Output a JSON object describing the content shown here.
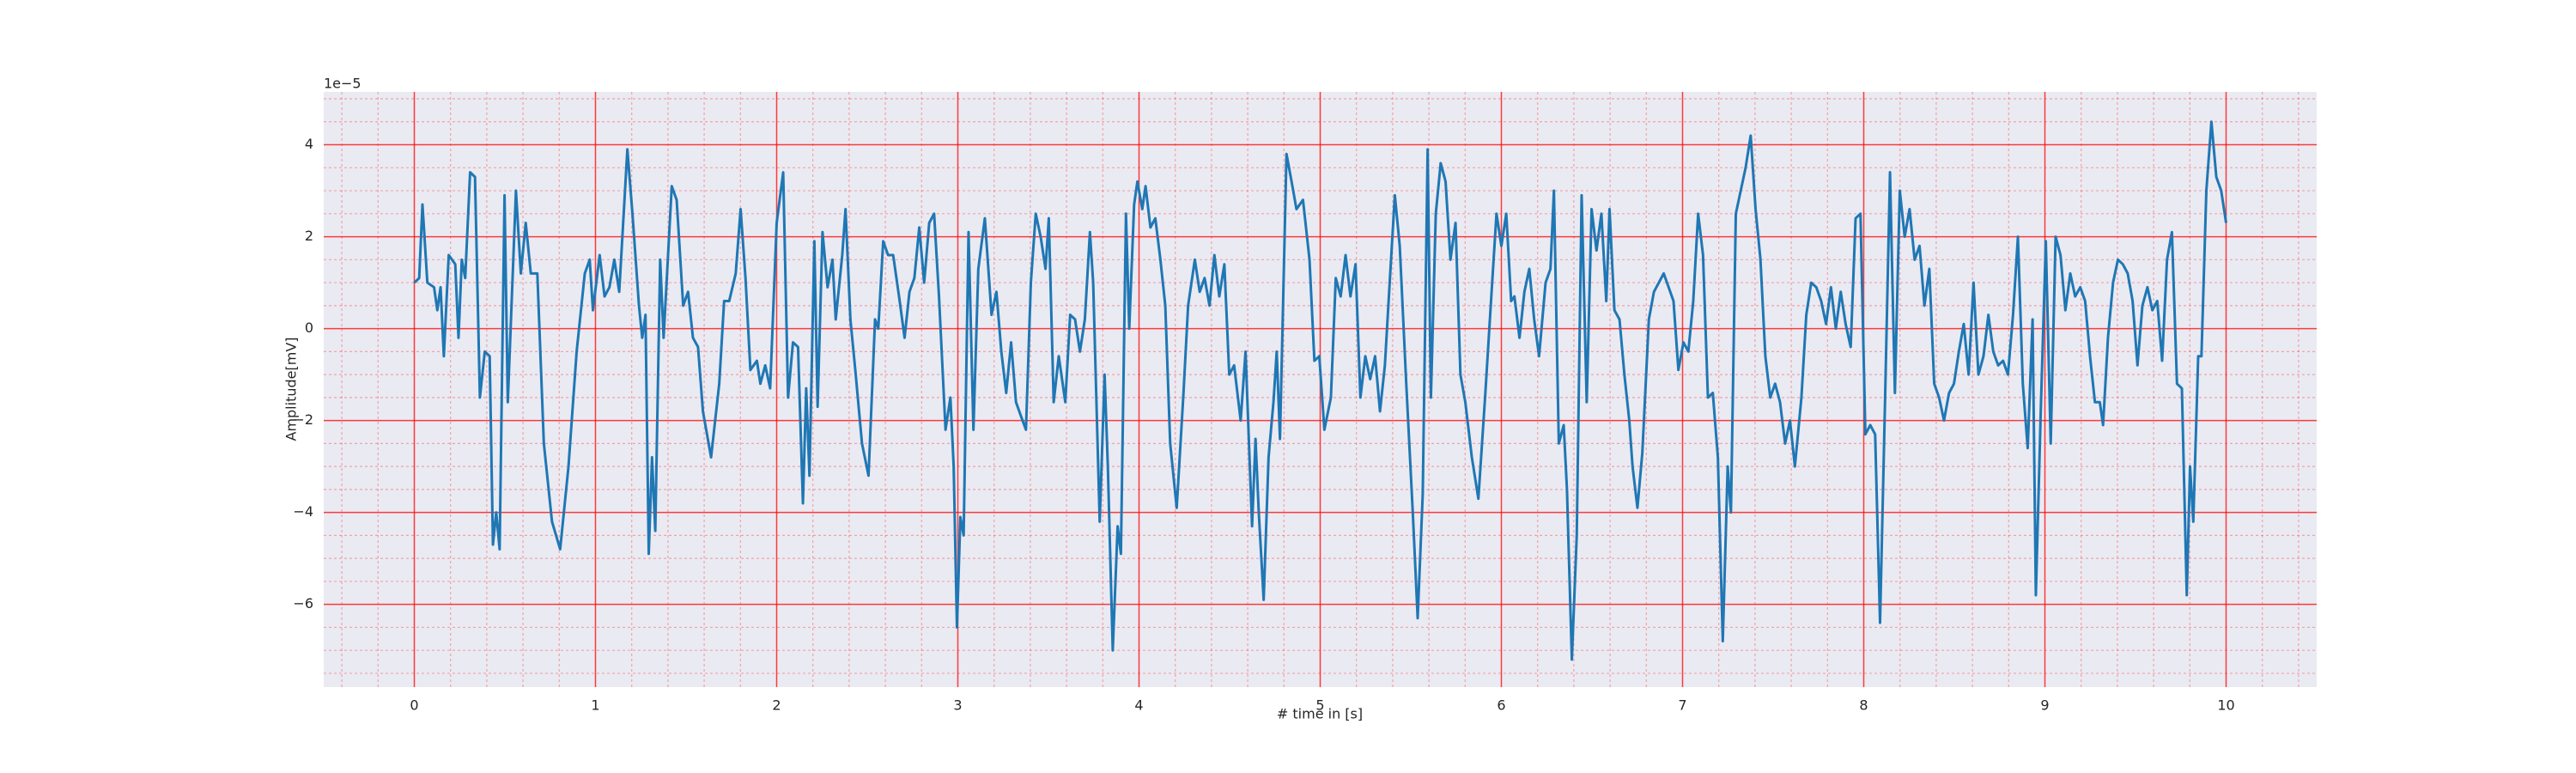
{
  "chart_data": {
    "type": "line",
    "xlabel": "# time in [s]",
    "ylabel": "Amplitude[mV]",
    "y_offset_label": "1e−5",
    "color": "#1f77b4",
    "grid": true,
    "minor_grid": true,
    "grid_color": "#ff0000",
    "minor_divisions": [
      5,
      4
    ],
    "xlim": [
      -0.5,
      10.5
    ],
    "xticks": [
      0,
      1,
      2,
      3,
      4,
      5,
      6,
      7,
      8,
      9,
      10
    ],
    "ylim": [
      -7.8,
      5.15
    ],
    "yticks": [
      {
        "value": -6,
        "label": "−6"
      },
      {
        "value": -4,
        "label": "−4"
      },
      {
        "value": -2,
        "label": "−2"
      },
      0,
      2,
      4
    ],
    "x": [
      0,
      0.027,
      0.045,
      0.072,
      0.109,
      0.127,
      0.145,
      0.163,
      0.19,
      0.226,
      0.244,
      0.262,
      0.281,
      0.308,
      0.335,
      0.362,
      0.389,
      0.416,
      0.434,
      0.452,
      0.471,
      0.498,
      0.516,
      0.561,
      0.588,
      0.615,
      0.643,
      0.679,
      0.715,
      0.76,
      0.805,
      0.851,
      0.896,
      0.941,
      0.968,
      0.986,
      1.023,
      1.05,
      1.077,
      1.104,
      1.131,
      1.176,
      1.204,
      1.24,
      1.258,
      1.276,
      1.294,
      1.312,
      1.33,
      1.357,
      1.376,
      1.421,
      1.448,
      1.484,
      1.511,
      1.538,
      1.566,
      1.593,
      1.638,
      1.683,
      1.71,
      1.738,
      1.774,
      1.801,
      1.828,
      1.855,
      1.891,
      1.91,
      1.937,
      1.964,
      2.0,
      2.036,
      2.063,
      2.09,
      2.118,
      2.145,
      2.163,
      2.181,
      2.208,
      2.226,
      2.253,
      2.281,
      2.308,
      2.326,
      2.362,
      2.38,
      2.407,
      2.434,
      2.471,
      2.507,
      2.543,
      2.561,
      2.588,
      2.615,
      2.643,
      2.679,
      2.706,
      2.733,
      2.76,
      2.787,
      2.814,
      2.842,
      2.869,
      2.896,
      2.932,
      2.959,
      2.977,
      2.995,
      3.014,
      3.032,
      3.059,
      3.086,
      3.113,
      3.149,
      3.186,
      3.213,
      3.24,
      3.267,
      3.294,
      3.321,
      3.348,
      3.376,
      3.403,
      3.43,
      3.457,
      3.484,
      3.502,
      3.529,
      3.557,
      3.593,
      3.62,
      3.647,
      3.674,
      3.701,
      3.729,
      3.747,
      3.783,
      3.81,
      3.828,
      3.855,
      3.882,
      3.9,
      3.928,
      3.946,
      3.973,
      3.991,
      4.018,
      4.036,
      4.063,
      4.09,
      4.118,
      4.145,
      4.172,
      4.208,
      4.244,
      4.271,
      4.308,
      4.335,
      4.362,
      4.389,
      4.416,
      4.443,
      4.471,
      4.498,
      4.525,
      4.561,
      4.588,
      4.624,
      4.643,
      4.661,
      4.688,
      4.715,
      4.742,
      4.76,
      4.778,
      4.814,
      4.842,
      4.869,
      4.905,
      4.941,
      4.968,
      4.995,
      5.023,
      5.059,
      5.086,
      5.113,
      5.14,
      5.167,
      5.195,
      5.222,
      5.249,
      5.276,
      5.303,
      5.33,
      5.357,
      5.385,
      5.412,
      5.439,
      5.475,
      5.511,
      5.538,
      5.566,
      5.593,
      5.611,
      5.638,
      5.665,
      5.692,
      5.719,
      5.747,
      5.774,
      5.801,
      5.837,
      5.873,
      5.91,
      5.946,
      5.973,
      6.0,
      6.027,
      6.054,
      6.072,
      6.1,
      6.127,
      6.154,
      6.181,
      6.208,
      6.244,
      6.271,
      6.29,
      6.317,
      6.344,
      6.362,
      6.389,
      6.416,
      6.443,
      6.471,
      6.498,
      6.525,
      6.552,
      6.579,
      6.597,
      6.624,
      6.652,
      6.679,
      6.706,
      6.724,
      6.751,
      6.778,
      6.814,
      6.842,
      6.869,
      6.896,
      6.923,
      6.95,
      6.977,
      7.005,
      7.032,
      7.059,
      7.086,
      7.113,
      7.14,
      7.167,
      7.195,
      7.222,
      7.249,
      7.267,
      7.294,
      7.321,
      7.348,
      7.376,
      7.403,
      7.43,
      7.457,
      7.484,
      7.511,
      7.538,
      7.566,
      7.593,
      7.62,
      7.656,
      7.683,
      7.71,
      7.738,
      7.765,
      7.792,
      7.819,
      7.846,
      7.873,
      7.9,
      7.928,
      7.955,
      7.982,
      8.009,
      8.036,
      8.063,
      8.09,
      8.118,
      8.145,
      8.172,
      8.199,
      8.226,
      8.253,
      8.281,
      8.308,
      8.335,
      8.362,
      8.389,
      8.416,
      8.443,
      8.471,
      8.498,
      8.525,
      8.552,
      8.579,
      8.606,
      8.633,
      8.661,
      8.688,
      8.715,
      8.742,
      8.769,
      8.796,
      8.824,
      8.851,
      8.878,
      8.905,
      8.932,
      8.95,
      8.977,
      9.005,
      9.032,
      9.059,
      9.086,
      9.113,
      9.14,
      9.167,
      9.195,
      9.222,
      9.249,
      9.276,
      9.303,
      9.321,
      9.348,
      9.376,
      9.403,
      9.43,
      9.457,
      9.484,
      9.511,
      9.538,
      9.566,
      9.593,
      9.62,
      9.647,
      9.674,
      9.701,
      9.729,
      9.756,
      9.783,
      9.801,
      9.819,
      9.846,
      9.864,
      9.891,
      9.919,
      9.946,
      9.973,
      10.0
    ],
    "values": [
      1,
      1.1,
      2.7,
      1.0,
      0.9,
      0.4,
      0.9,
      -0.6,
      1.6,
      1.4,
      -0.2,
      1.5,
      1.1,
      3.4,
      3.3,
      -1.5,
      -0.5,
      -0.6,
      -4.7,
      -4.0,
      -4.8,
      2.9,
      -1.6,
      3.0,
      1.2,
      2.3,
      1.2,
      1.2,
      -2.5,
      -4.2,
      -4.8,
      -3.0,
      -0.5,
      1.2,
      1.5,
      0.4,
      1.6,
      0.7,
      0.9,
      1.5,
      0.8,
      3.9,
      2.5,
      0.5,
      -0.2,
      0.3,
      -4.9,
      -2.8,
      -4.4,
      1.5,
      -0.2,
      3.1,
      2.8,
      0.5,
      0.8,
      -0.2,
      -0.4,
      -1.8,
      -2.8,
      -1.2,
      0.6,
      0.6,
      1.2,
      2.6,
      1.1,
      -0.9,
      -0.7,
      -1.2,
      -0.8,
      -1.3,
      2.3,
      3.4,
      -1.5,
      -0.3,
      -0.4,
      -3.8,
      -1.3,
      -3.2,
      1.9,
      -1.7,
      2.1,
      0.9,
      1.5,
      0.2,
      1.6,
      2.6,
      0.2,
      -0.9,
      -2.5,
      -3.2,
      0.2,
      0,
      1.9,
      1.6,
      1.6,
      0.6,
      -0.2,
      0.8,
      1.1,
      2.2,
      1.0,
      2.3,
      2.5,
      0.7,
      -2.2,
      -1.5,
      -3.0,
      -6.5,
      -4.1,
      -4.5,
      2.1,
      -2.2,
      1.3,
      2.4,
      0.3,
      0.8,
      -0.5,
      -1.4,
      -0.3,
      -1.6,
      -1.9,
      -2.2,
      1.0,
      2.5,
      2.0,
      1.3,
      2.4,
      -1.6,
      -0.6,
      -1.6,
      0.3,
      0.2,
      -0.5,
      0.2,
      2.1,
      1.0,
      -4.2,
      -1.0,
      -3.0,
      -7.0,
      -4.3,
      -4.9,
      2.5,
      0,
      2.7,
      3.2,
      2.6,
      3.1,
      2.2,
      2.4,
      1.5,
      0.5,
      -2.5,
      -3.9,
      -1.5,
      0.5,
      1.5,
      0.8,
      1.1,
      0.5,
      1.6,
      0.7,
      1.4,
      -1.0,
      -0.8,
      -2.0,
      -0.5,
      -4.3,
      -2.4,
      -4.0,
      -5.9,
      -2.8,
      -1.6,
      -0.5,
      -2.4,
      3.8,
      3.2,
      2.6,
      2.8,
      1.5,
      -0.7,
      -0.6,
      -2.2,
      -1.5,
      1.1,
      0.7,
      1.6,
      0.7,
      1.4,
      -1.5,
      -0.6,
      -1.1,
      -0.6,
      -1.8,
      -0.8,
      1.1,
      2.9,
      1.8,
      -1.2,
      -4.0,
      -6.3,
      -3.6,
      3.9,
      -1.5,
      2.5,
      3.6,
      3.2,
      1.5,
      2.3,
      -1.0,
      -1.6,
      -2.8,
      -3.7,
      -1.5,
      0.8,
      2.5,
      1.8,
      2.5,
      0.6,
      0.7,
      -0.2,
      0.8,
      1.3,
      0.2,
      -0.6,
      1.0,
      1.3,
      3.0,
      -2.5,
      -2.1,
      -3.5,
      -7.2,
      -4.5,
      2.9,
      -1.6,
      2.6,
      1.7,
      2.5,
      0.6,
      2.6,
      0.4,
      0.2,
      -1.0,
      -2.0,
      -3.0,
      -3.9,
      -2.7,
      0.2,
      0.8,
      1.0,
      1.2,
      0.9,
      0.6,
      -0.9,
      -0.3,
      -0.5,
      0.6,
      2.5,
      1.6,
      -1.5,
      -1.4,
      -2.8,
      -6.8,
      -3.0,
      -4.0,
      2.5,
      3.0,
      3.5,
      4.2,
      2.6,
      1.5,
      -0.6,
      -1.5,
      -1.2,
      -1.6,
      -2.5,
      -2.0,
      -3.0,
      -1.5,
      0.3,
      1.0,
      0.9,
      0.6,
      0.1,
      0.9,
      0,
      0.8,
      0.1,
      -0.4,
      2.4,
      2.5,
      -2.3,
      -2.1,
      -2.3,
      -6.4,
      -1.5,
      3.4,
      -1.4,
      3.0,
      2.0,
      2.6,
      1.5,
      1.8,
      0.5,
      1.3,
      -1.2,
      -1.5,
      -2.0,
      -1.4,
      -1.2,
      -0.5,
      0.1,
      -1.0,
      1.0,
      -1.0,
      -0.6,
      0.3,
      -0.5,
      -0.8,
      -0.7,
      -1.0,
      0.3,
      2.0,
      -1.2,
      -2.6,
      0.2,
      -5.8,
      -1.8,
      1.9,
      -2.5,
      2.0,
      1.6,
      0.4,
      1.2,
      0.7,
      0.9,
      0.6,
      -0.6,
      -1.6,
      -1.6,
      -2.1,
      -0.2,
      1.0,
      1.5,
      1.4,
      1.2,
      0.6,
      -0.8,
      0.5,
      0.9,
      0.4,
      0.6,
      -0.7,
      1.5,
      2.1,
      -1.2,
      -1.3,
      -5.8,
      -3.0,
      -4.2,
      -0.6,
      -0.6,
      3.0,
      4.5,
      3.3,
      3.0,
      2.3
    ]
  }
}
